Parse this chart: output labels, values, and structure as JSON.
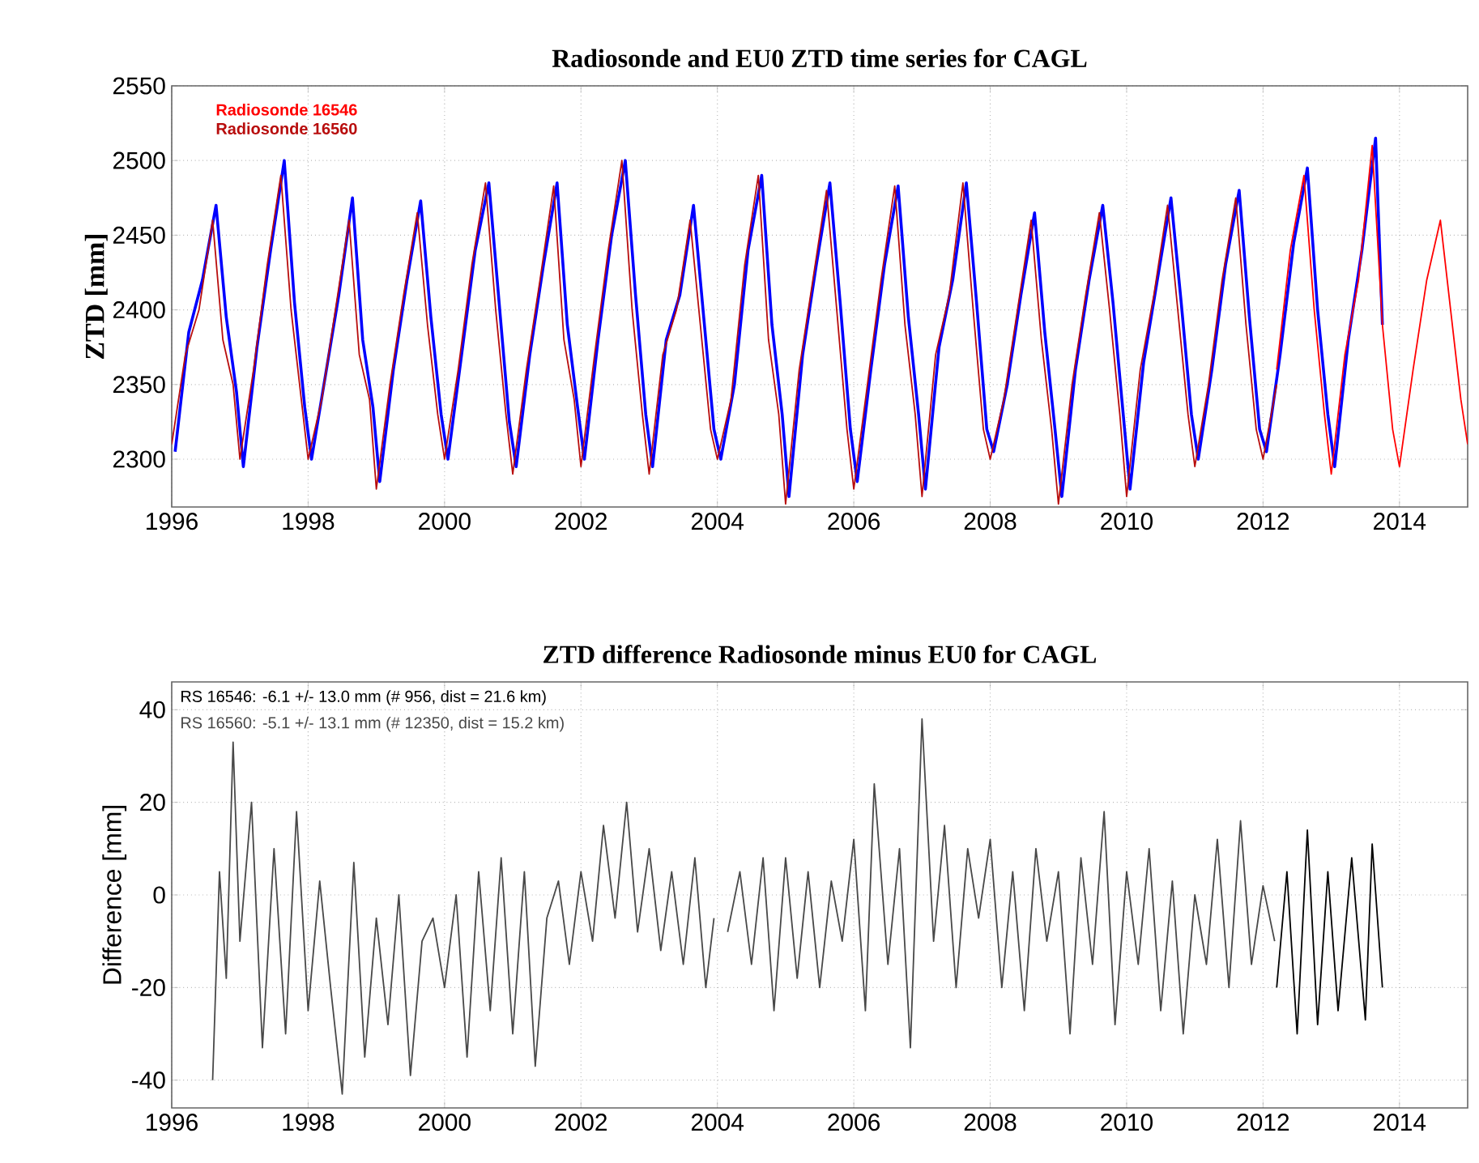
{
  "chart_data": [
    {
      "type": "line",
      "title": "Radiosonde and EU0 ZTD time series for CAGL",
      "ylabel": "ZTD  [mm]",
      "xlim": [
        1996,
        2015
      ],
      "ylim": [
        2268,
        2550
      ],
      "xticks": [
        1996,
        1998,
        2000,
        2002,
        2004,
        2006,
        2008,
        2010,
        2012,
        2014
      ],
      "yticks": [
        2300,
        2350,
        2400,
        2450,
        2500,
        2550
      ],
      "grid": true,
      "legend": "top left",
      "marker": "none",
      "series": [
        {
          "color": "#0000ff",
          "x": [
            1996.05,
            1996.25,
            1996.45,
            1996.65,
            1996.8,
            1996.95,
            1997.05,
            1997.25,
            1997.45,
            1997.65,
            1997.8,
            1997.95,
            1998.05,
            1998.25,
            1998.45,
            1998.65,
            1998.8,
            1998.95,
            1999.05,
            1999.25,
            1999.45,
            1999.65,
            1999.8,
            1999.95,
            2000.05,
            2000.25,
            2000.45,
            2000.65,
            2000.8,
            2000.95,
            2001.05,
            2001.25,
            2001.45,
            2001.65,
            2001.8,
            2001.95,
            2002.05,
            2002.25,
            2002.45,
            2002.65,
            2002.8,
            2002.95,
            2003.05,
            2003.25,
            2003.45,
            2003.65,
            2003.8,
            2003.95,
            2004.05,
            2004.25,
            2004.45,
            2004.65,
            2004.8,
            2004.95,
            2005.05,
            2005.25,
            2005.45,
            2005.65,
            2005.8,
            2005.95,
            2006.05,
            2006.25,
            2006.45,
            2006.65,
            2006.8,
            2006.95,
            2007.05,
            2007.25,
            2007.45,
            2007.65,
            2007.8,
            2007.95,
            2008.05,
            2008.25,
            2008.45,
            2008.65,
            2008.8,
            2008.95,
            2009.05,
            2009.25,
            2009.45,
            2009.65,
            2009.8,
            2009.95,
            2010.05,
            2010.25,
            2010.45,
            2010.65,
            2010.8,
            2010.95,
            2011.05,
            2011.25,
            2011.45,
            2011.65,
            2011.8,
            2011.95,
            2012.05,
            2012.25,
            2012.45,
            2012.65,
            2012.8,
            2012.95,
            2013.05,
            2013.25,
            2013.45,
            2013.65,
            2013.75
          ],
          "values": [
            2305,
            2385,
            2420,
            2470,
            2395,
            2345,
            2295,
            2375,
            2440,
            2500,
            2405,
            2335,
            2300,
            2355,
            2410,
            2475,
            2380,
            2335,
            2285,
            2360,
            2420,
            2473,
            2395,
            2330,
            2300,
            2370,
            2440,
            2485,
            2405,
            2325,
            2295,
            2370,
            2430,
            2485,
            2390,
            2335,
            2300,
            2380,
            2450,
            2500,
            2410,
            2330,
            2295,
            2380,
            2410,
            2470,
            2395,
            2320,
            2300,
            2350,
            2440,
            2490,
            2390,
            2330,
            2275,
            2370,
            2430,
            2485,
            2405,
            2320,
            2285,
            2360,
            2430,
            2483,
            2395,
            2330,
            2280,
            2375,
            2420,
            2485,
            2405,
            2320,
            2305,
            2350,
            2410,
            2465,
            2385,
            2320,
            2275,
            2360,
            2420,
            2470,
            2405,
            2330,
            2280,
            2365,
            2420,
            2475,
            2405,
            2330,
            2300,
            2360,
            2430,
            2480,
            2395,
            2320,
            2305,
            2370,
            2445,
            2495,
            2400,
            2330,
            2295,
            2380,
            2440,
            2515,
            2390
          ]
        },
        {
          "name": "Radiosonde 16546",
          "color": "#ff0000",
          "x": [
            2012.2,
            2012.4,
            2012.6,
            2012.75,
            2012.9,
            2013.0,
            2013.2,
            2013.4,
            2013.6,
            2013.75,
            2013.9,
            2014.0,
            2014.2,
            2014.4,
            2014.6,
            2014.75,
            2014.9,
            2015.0
          ],
          "values": [
            2360,
            2440,
            2490,
            2400,
            2330,
            2290,
            2370,
            2420,
            2510,
            2390,
            2320,
            2295,
            2360,
            2420,
            2460,
            2400,
            2340,
            2310
          ]
        },
        {
          "name": "Radiosonde 16560",
          "color": "#b80d0d",
          "x": [
            1996.0,
            1996.2,
            1996.4,
            1996.6,
            1996.75,
            1996.9,
            1997.0,
            1997.2,
            1997.4,
            1997.6,
            1997.75,
            1997.9,
            1998.0,
            1998.2,
            1998.4,
            1998.6,
            1998.75,
            1998.9,
            1999.0,
            1999.2,
            1999.4,
            1999.6,
            1999.75,
            1999.9,
            2000.0,
            2000.2,
            2000.4,
            2000.6,
            2000.75,
            2000.9,
            2001.0,
            2001.2,
            2001.4,
            2001.6,
            2001.75,
            2001.9,
            2002.0,
            2002.2,
            2002.4,
            2002.6,
            2002.75,
            2002.9,
            2003.0,
            2003.2,
            2003.4,
            2003.6,
            2003.75,
            2003.9,
            2004.0,
            2004.2,
            2004.4,
            2004.6,
            2004.75,
            2004.9,
            2005.0,
            2005.2,
            2005.4,
            2005.6,
            2005.75,
            2005.9,
            2006.0,
            2006.2,
            2006.4,
            2006.6,
            2006.75,
            2006.9,
            2007.0,
            2007.2,
            2007.4,
            2007.6,
            2007.75,
            2007.9,
            2008.0,
            2008.2,
            2008.4,
            2008.6,
            2008.75,
            2008.9,
            2009.0,
            2009.2,
            2009.4,
            2009.6,
            2009.75,
            2009.9,
            2010.0,
            2010.2,
            2010.4,
            2010.6,
            2010.75,
            2010.9,
            2011.0,
            2011.2,
            2011.4,
            2011.6,
            2011.75,
            2011.9,
            2012.0,
            2012.2
          ],
          "values": [
            2310,
            2370,
            2400,
            2460,
            2380,
            2350,
            2300,
            2360,
            2430,
            2490,
            2400,
            2340,
            2300,
            2340,
            2400,
            2460,
            2370,
            2340,
            2280,
            2350,
            2410,
            2465,
            2390,
            2330,
            2300,
            2360,
            2430,
            2485,
            2400,
            2330,
            2290,
            2360,
            2420,
            2483,
            2380,
            2340,
            2295,
            2370,
            2440,
            2500,
            2400,
            2330,
            2290,
            2370,
            2400,
            2460,
            2390,
            2320,
            2300,
            2340,
            2430,
            2490,
            2380,
            2330,
            2270,
            2360,
            2420,
            2480,
            2400,
            2320,
            2280,
            2350,
            2420,
            2483,
            2390,
            2330,
            2275,
            2370,
            2410,
            2485,
            2400,
            2320,
            2300,
            2340,
            2400,
            2460,
            2380,
            2320,
            2270,
            2350,
            2410,
            2465,
            2400,
            2330,
            2275,
            2360,
            2410,
            2470,
            2400,
            2330,
            2295,
            2350,
            2420,
            2475,
            2390,
            2320,
            2300,
            2350
          ]
        }
      ]
    },
    {
      "type": "line",
      "title": "ZTD difference Radiosonde minus EU0 for CAGL",
      "ylabel": "Difference [mm]",
      "xlim": [
        1996,
        2015
      ],
      "ylim": [
        -46,
        46
      ],
      "xticks": [
        1996,
        1998,
        2000,
        2002,
        2004,
        2006,
        2008,
        2010,
        2012,
        2014
      ],
      "yticks": [
        -40,
        -20,
        0,
        20,
        40
      ],
      "grid": true,
      "marker": "none",
      "annotations": [
        "RS 16546: -6.1 +/- 13.0 mm (# 956, dist =  21.6 km)",
        "RS 16560: -5.1 +/- 13.1 mm (# 12350, dist =  15.2 km)"
      ],
      "series": [
        {
          "color": "#000000",
          "x": [
            2012.2,
            2012.35,
            2012.5,
            2012.65,
            2012.8,
            2012.95,
            2013.1,
            2013.3,
            2013.5,
            2013.6,
            2013.75
          ],
          "values": [
            -20,
            5,
            -30,
            14,
            -28,
            5,
            -25,
            8,
            -27,
            11,
            -20
          ]
        },
        {
          "color": "#484848",
          "x": [
            1996.6,
            1996.7,
            1996.8,
            1996.9,
            1997.0,
            1997.17,
            1997.33,
            1997.5,
            1997.67,
            1997.83,
            1998.0,
            1998.17,
            1998.33,
            1998.5,
            1998.67,
            1998.83,
            1999.0,
            1999.17,
            1999.33,
            1999.5,
            1999.67,
            1999.83,
            2000.0,
            2000.17,
            2000.33,
            2000.5,
            2000.67,
            2000.83,
            2001.0,
            2001.17,
            2001.33,
            2001.5,
            2001.67,
            2001.83,
            2002.0,
            2002.17,
            2002.33,
            2002.5,
            2002.67,
            2002.83,
            2003.0,
            2003.17,
            2003.33,
            2003.5,
            2003.67,
            2003.83,
            2003.95,
            2004.05,
            2004.15,
            2004.33,
            2004.5,
            2004.67,
            2004.83,
            2005.0,
            2005.17,
            2005.33,
            2005.5,
            2005.67,
            2005.83,
            2006.0,
            2006.17,
            2006.3,
            2006.5,
            2006.67,
            2006.83,
            2007.0,
            2007.17,
            2007.33,
            2007.5,
            2007.67,
            2007.83,
            2008.0,
            2008.17,
            2008.33,
            2008.5,
            2008.67,
            2008.83,
            2009.0,
            2009.17,
            2009.33,
            2009.5,
            2009.67,
            2009.83,
            2010.0,
            2010.17,
            2010.33,
            2010.5,
            2010.67,
            2010.83,
            2011.0,
            2011.17,
            2011.33,
            2011.5,
            2011.67,
            2011.83,
            2012.0,
            2012.17
          ],
          "values": [
            -40,
            5,
            -18,
            33,
            -10,
            20,
            -33,
            10,
            -30,
            18,
            -25,
            3,
            -20,
            -43,
            7,
            -35,
            -5,
            -28,
            0,
            -39,
            -10,
            -5,
            -20,
            0,
            -35,
            5,
            -25,
            8,
            -30,
            5,
            -37,
            -5,
            3,
            -15,
            5,
            -10,
            15,
            -5,
            20,
            -8,
            10,
            -12,
            5,
            -15,
            8,
            -20,
            -5,
            null,
            -8,
            5,
            -15,
            8,
            -25,
            8,
            -18,
            5,
            -20,
            3,
            -10,
            12,
            -25,
            24,
            -15,
            10,
            -33,
            38,
            -10,
            15,
            -20,
            10,
            -5,
            12,
            -20,
            5,
            -25,
            10,
            -10,
            5,
            -30,
            8,
            -15,
            18,
            -28,
            5,
            -15,
            10,
            -25,
            3,
            -30,
            0,
            -15,
            12,
            -20,
            16,
            -15,
            2,
            -10
          ]
        }
      ]
    }
  ]
}
